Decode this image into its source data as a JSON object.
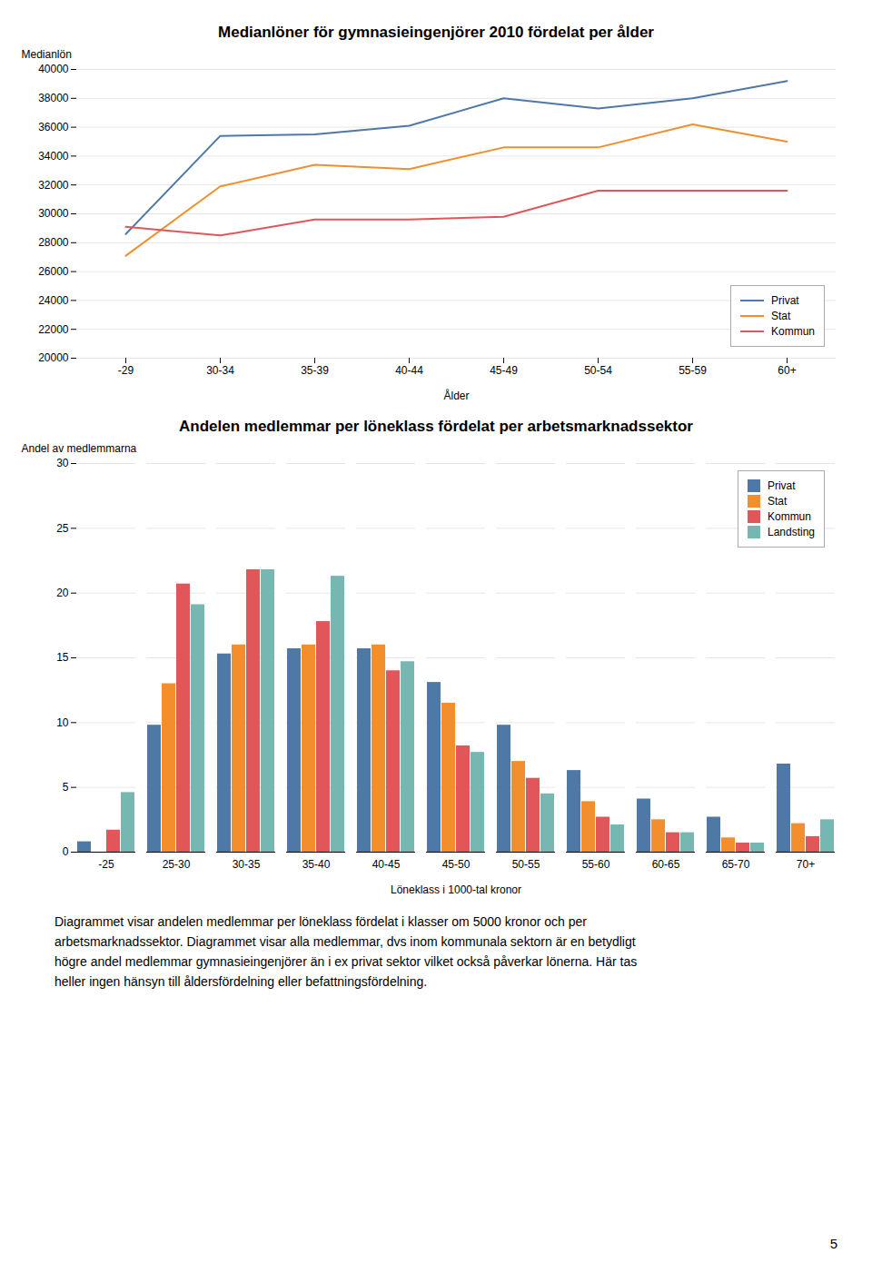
{
  "chart_data": [
    {
      "type": "line",
      "title": "Medianlöner för gymnasieingenjörer 2010 fördelat per ålder",
      "xlabel": "Ålder",
      "ylabel": "Medianlön",
      "categories": [
        "-29",
        "30-34",
        "35-39",
        "40-44",
        "45-49",
        "50-54",
        "55-59",
        "60+"
      ],
      "series": [
        {
          "name": "Privat",
          "values": [
            28600,
            35400,
            35500,
            36100,
            38000,
            37300,
            38000,
            39200
          ]
        },
        {
          "name": "Stat",
          "values": [
            27100,
            31900,
            33400,
            33100,
            34600,
            34600,
            36200,
            35000
          ]
        },
        {
          "name": "Kommun",
          "values": [
            29100,
            28500,
            29600,
            29600,
            29800,
            31600,
            31600,
            31600
          ]
        }
      ],
      "ylim": [
        20000,
        40000
      ],
      "yticks": [
        20000,
        22000,
        24000,
        26000,
        28000,
        30000,
        32000,
        34000,
        36000,
        38000,
        40000
      ],
      "grid": true,
      "legend": "lower right"
    },
    {
      "type": "bar",
      "title": "Andelen medlemmar per löneklass fördelat per arbetsmarknadssektor",
      "xlabel": "Löneklass i 1000-tal kronor",
      "ylabel": "Andel av medlemmarna",
      "categories": [
        "-25",
        "25-30",
        "30-35",
        "35-40",
        "40-45",
        "45-50",
        "50-55",
        "55-60",
        "60-65",
        "65-70",
        "70+"
      ],
      "series": [
        {
          "name": "Privat",
          "values": [
            0.8,
            9.8,
            15.3,
            15.7,
            15.7,
            13.1,
            9.8,
            6.3,
            4.1,
            2.7,
            6.8
          ]
        },
        {
          "name": "Stat",
          "values": [
            0.0,
            13.0,
            16.0,
            16.0,
            16.0,
            11.5,
            7.0,
            3.9,
            2.5,
            1.1,
            2.2
          ]
        },
        {
          "name": "Kommun",
          "values": [
            1.7,
            20.7,
            21.8,
            17.8,
            14.0,
            8.2,
            5.7,
            2.7,
            1.5,
            0.7,
            1.2
          ]
        },
        {
          "name": "Landsting",
          "values": [
            4.6,
            19.1,
            21.8,
            21.3,
            14.7,
            7.7,
            4.5,
            2.1,
            1.5,
            0.7,
            2.5
          ]
        }
      ],
      "ylim": [
        0,
        30
      ],
      "yticks": [
        0,
        5,
        10,
        15,
        20,
        25,
        30
      ],
      "grid": true,
      "legend": "upper right",
      "annotations": [
        "Diagrammet visar andelen medlemmar per löneklass fördelat i klasser om 5000 kronor och per",
        "arbetsmarknadssektor. Diagrammet visar alla medlemmar, dvs inom kommunala sektorn är en betydligt",
        "högre andel medlemmar gymnasieingenjörer än i ex privat sektor vilket också påverkar lönerna. Här tas",
        "heller ingen hänsyn till åldersfördelning eller befattningsfördelning."
      ]
    }
  ],
  "annotations": [
    "5"
  ]
}
